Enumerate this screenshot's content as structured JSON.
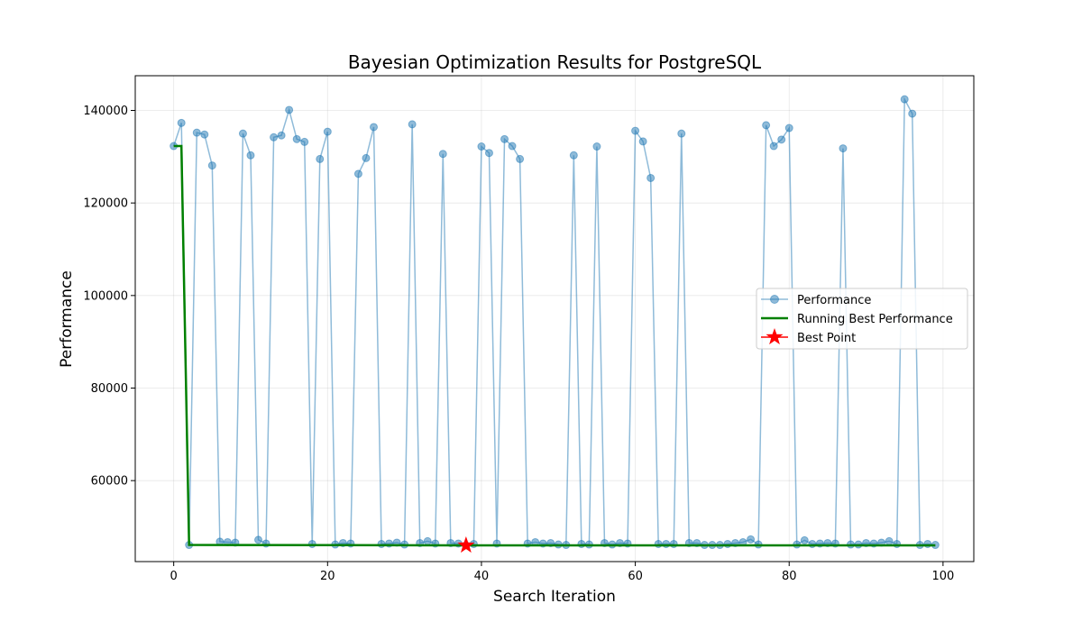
{
  "chart_data": {
    "type": "line",
    "title": "Bayesian Optimization Results for PostgreSQL",
    "xlabel": "Search Iteration",
    "ylabel": "Performance",
    "xlim": [
      -5,
      104
    ],
    "ylim": [
      42500,
      147500
    ],
    "xticks": [
      0,
      20,
      40,
      60,
      80,
      100
    ],
    "yticks": [
      60000,
      80000,
      100000,
      120000,
      140000
    ],
    "grid": true,
    "legend_position": "center-right",
    "series": [
      {
        "name": "Performance",
        "color": "#1f77b4",
        "x": [
          0,
          1,
          2,
          3,
          4,
          5,
          6,
          7,
          8,
          9,
          10,
          11,
          12,
          13,
          14,
          15,
          16,
          17,
          18,
          19,
          20,
          21,
          22,
          23,
          24,
          25,
          26,
          27,
          28,
          29,
          30,
          31,
          32,
          33,
          34,
          35,
          36,
          37,
          38,
          39,
          40,
          41,
          42,
          43,
          44,
          45,
          46,
          47,
          48,
          49,
          50,
          51,
          52,
          53,
          54,
          55,
          56,
          57,
          58,
          59,
          60,
          61,
          62,
          63,
          64,
          65,
          66,
          67,
          68,
          69,
          70,
          71,
          72,
          73,
          74,
          75,
          76,
          77,
          78,
          79,
          80,
          81,
          82,
          83,
          84,
          85,
          86,
          87,
          88,
          89,
          90,
          91,
          92,
          93,
          94,
          95,
          96,
          97,
          98,
          99
        ],
        "values": [
          132300,
          137300,
          46100,
          135200,
          134800,
          128100,
          46800,
          46700,
          46600,
          135000,
          130300,
          47200,
          46400,
          134200,
          134600,
          140100,
          133800,
          133200,
          46300,
          129500,
          135400,
          46200,
          46500,
          46400,
          126300,
          129700,
          136400,
          46300,
          46400,
          46600,
          46200,
          137000,
          46500,
          46900,
          46400,
          130600,
          46500,
          46400,
          46000,
          46300,
          132200,
          130800,
          46400,
          133800,
          132300,
          129500,
          46400,
          46700,
          46400,
          46500,
          46200,
          46100,
          130300,
          46300,
          46200,
          132200,
          46500,
          46200,
          46500,
          46400,
          135600,
          133300,
          125400,
          46300,
          46300,
          46300,
          135000,
          46500,
          46500,
          46100,
          46100,
          46100,
          46300,
          46500,
          46700,
          47300,
          46200,
          136800,
          132300,
          133700,
          136200,
          46200,
          47100,
          46300,
          46400,
          46500,
          46400,
          131800,
          46200,
          46200,
          46500,
          46400,
          46600,
          46900,
          46300,
          142400,
          139300,
          46100,
          46300,
          46100
        ]
      },
      {
        "name": "Running Best Performance",
        "color": "#008000",
        "x": [
          0,
          1,
          2,
          38,
          99
        ],
        "values": [
          132300,
          132300,
          46100,
          46000,
          46000
        ]
      }
    ],
    "best_point": {
      "name": "Best Point",
      "x": 38,
      "y": 46000,
      "color": "#ff0000"
    }
  }
}
